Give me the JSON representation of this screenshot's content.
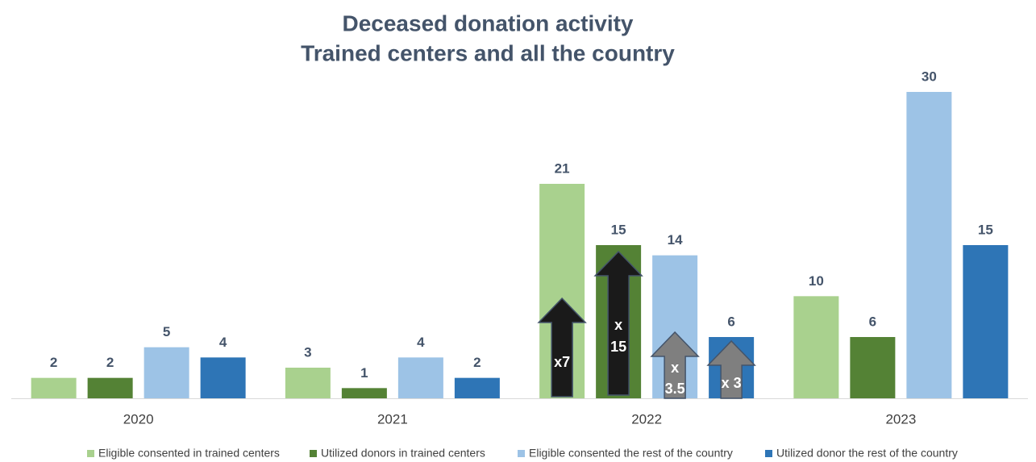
{
  "chart_data": {
    "type": "bar",
    "title": [
      "Deceased donation activity",
      "Trained centers and all the country"
    ],
    "categories": [
      "2020",
      "2021",
      "2022",
      "2023"
    ],
    "series": [
      {
        "name": "Eligible consented in trained centers",
        "color": "#a9d18e",
        "values": [
          2,
          3,
          21,
          10
        ]
      },
      {
        "name": "Utilized donors in trained centers",
        "color": "#548235",
        "values": [
          2,
          1,
          15,
          6
        ]
      },
      {
        "name": "Eligible consented the rest of the country",
        "color": "#9dc3e6",
        "values": [
          5,
          4,
          14,
          30
        ]
      },
      {
        "name": "Utilized donor the rest of the country",
        "color": "#2e75b6",
        "values": [
          4,
          2,
          6,
          15
        ]
      }
    ],
    "annotations": [
      {
        "lines": [
          "x7"
        ],
        "color": "#1a1a1a"
      },
      {
        "lines": [
          "x",
          "15"
        ],
        "color": "#1a1a1a"
      },
      {
        "lines": [
          "x",
          "3.5"
        ],
        "color": "#7f7f7f"
      },
      {
        "lines": [
          "x 3"
        ],
        "color": "#7f7f7f"
      }
    ],
    "legend": "bottom"
  }
}
